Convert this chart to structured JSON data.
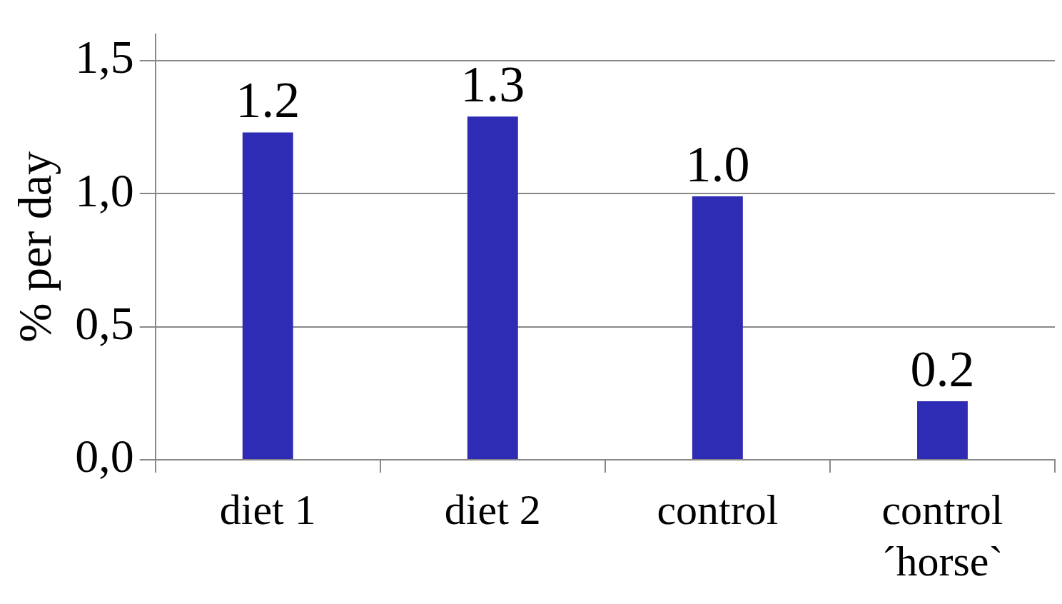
{
  "chart_data": {
    "type": "bar",
    "ylabel": "% per day",
    "categories": [
      "diet 1",
      "diet 2",
      "control",
      "control ´horse`"
    ],
    "values": [
      1.23,
      1.29,
      0.99,
      0.22
    ],
    "value_labels": [
      "1.2",
      "1.3",
      "1.0",
      "0.2"
    ],
    "color": "#2e2bb5",
    "ylim": [
      0,
      1.6
    ],
    "yticks": [
      {
        "value": 0,
        "label": "0,0"
      },
      {
        "value": 0.5,
        "label": "0,5"
      },
      {
        "value": 1,
        "label": "1,0"
      },
      {
        "value": 1.5,
        "label": "1,5"
      }
    ],
    "grid": "y"
  }
}
